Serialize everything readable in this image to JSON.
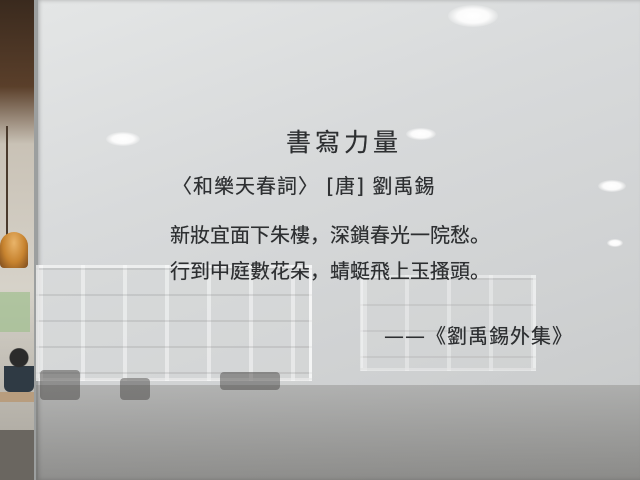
{
  "poem": {
    "title": "書寫力量",
    "subtitle": "〈和樂天春詞〉 [唐] 劉禹錫",
    "verse_1": "新妝宜面下朱樓，深鎖春光一院愁。",
    "verse_2": "行到中庭數花朵，蜻蜓飛上玉搔頭。",
    "source": "——《劉禹錫外集》"
  },
  "colors": {
    "ink": "#2d2f31",
    "glass": "#d8dadb",
    "lamp": "#c7832f"
  }
}
